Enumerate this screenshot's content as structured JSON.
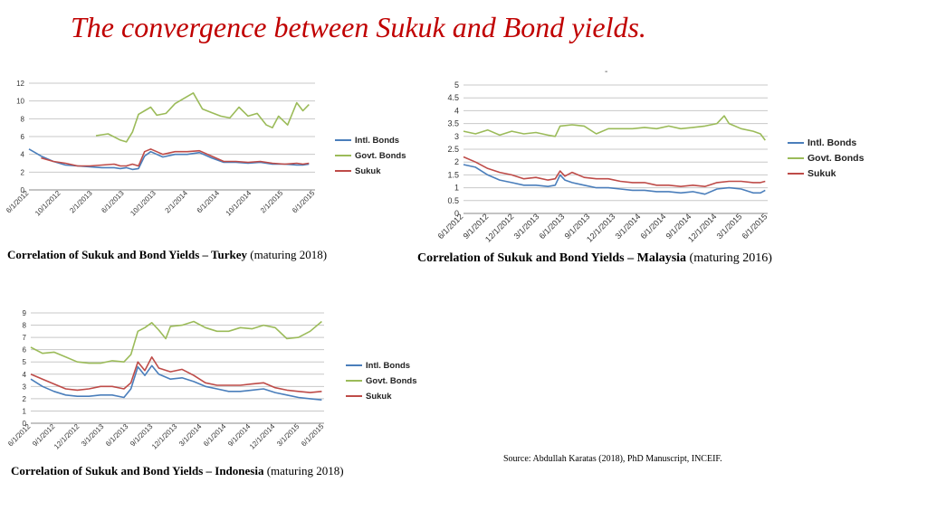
{
  "title": "The convergence between Sukuk and Bond yields.",
  "stray_mark": "-",
  "source": "Source: Abdullah Karatas (2018), PhD Manuscript, INCEIF.",
  "colors": {
    "intl": "#4a7ebb",
    "govt": "#9bbb59",
    "sukuk": "#be4b48",
    "title": "#c00000"
  },
  "captions": [
    {
      "bold": "Correlation of Sukuk and Bond Yields – Turkey",
      "rest": " (maturing 2018)"
    },
    {
      "bold": "Correlation of Sukuk and Bond Yields – Malaysia",
      "rest": " (maturing 2016)"
    },
    {
      "bold": "Correlation of Sukuk and Bond Yields – Indonesia",
      "rest": " (maturing 2018)"
    }
  ],
  "chart_data": [
    {
      "type": "line",
      "country": "Turkey",
      "ylim": [
        0,
        12
      ],
      "yticks": [
        "0",
        "2",
        "4",
        "6",
        "8",
        "10",
        "12"
      ],
      "x_labels": [
        "6/1/2012",
        "10/1/2012",
        "2/1/2013",
        "6/1/2013",
        "10/1/2013",
        "2/1/2014",
        "6/1/2014",
        "10/1/2014",
        "2/1/2015",
        "6/1/2015"
      ],
      "grid": true,
      "legend": "right",
      "series": [
        {
          "name": "Intl. Bonds",
          "key": "intl",
          "x": [
            0,
            0.4,
            0.8,
            1.2,
            1.6,
            2,
            2.4,
            2.8,
            3,
            3.2,
            3.4,
            3.6,
            3.8,
            4,
            4.4,
            4.8,
            5.2,
            5.6,
            6,
            6.4,
            6.8,
            7.2,
            7.6,
            8,
            8.4,
            8.8,
            9,
            9.2
          ],
          "values": [
            4.6,
            3.8,
            3.2,
            2.8,
            2.7,
            2.6,
            2.5,
            2.5,
            2.4,
            2.5,
            2.3,
            2.4,
            3.8,
            4.3,
            3.7,
            4.0,
            4.0,
            4.2,
            3.6,
            3.1,
            3.1,
            3.0,
            3.1,
            2.9,
            2.9,
            2.8,
            2.8,
            2.9
          ]
        },
        {
          "name": "Govt. Bonds",
          "key": "govt",
          "x": [
            2.2,
            2.6,
            3,
            3.2,
            3.4,
            3.6,
            3.8,
            4,
            4.2,
            4.5,
            4.8,
            5.1,
            5.4,
            5.7,
            6,
            6.3,
            6.6,
            6.9,
            7.2,
            7.5,
            7.8,
            8,
            8.2,
            8.5,
            8.8,
            9,
            9.2
          ],
          "values": [
            6.1,
            6.3,
            5.6,
            5.4,
            6.5,
            8.5,
            8.9,
            9.3,
            8.4,
            8.6,
            9.7,
            10.3,
            10.9,
            9.1,
            8.7,
            8.3,
            8.1,
            9.3,
            8.3,
            8.6,
            7.3,
            7.0,
            8.3,
            7.3,
            9.8,
            8.9,
            9.6
          ]
        },
        {
          "name": "Sukuk",
          "key": "sukuk",
          "x": [
            0.4,
            0.8,
            1.2,
            1.6,
            2,
            2.4,
            2.8,
            3,
            3.2,
            3.4,
            3.6,
            3.8,
            4,
            4.4,
            4.8,
            5.2,
            5.6,
            6,
            6.4,
            6.8,
            7.2,
            7.6,
            8,
            8.4,
            8.8,
            9,
            9.2
          ],
          "values": [
            3.6,
            3.2,
            3.0,
            2.7,
            2.7,
            2.8,
            2.9,
            2.7,
            2.7,
            2.9,
            2.7,
            4.3,
            4.6,
            4.0,
            4.3,
            4.3,
            4.4,
            3.8,
            3.2,
            3.2,
            3.1,
            3.2,
            3.0,
            2.9,
            3.0,
            2.9,
            3.0
          ]
        }
      ]
    },
    {
      "type": "line",
      "country": "Malaysia",
      "ylim": [
        0,
        5
      ],
      "yticks": [
        "0",
        "0.5",
        "1",
        "1.5",
        "2",
        "2.5",
        "3",
        "3.5",
        "4",
        "4.5",
        "5"
      ],
      "x_labels": [
        "6/1/2012",
        "9/1/2012",
        "12/1/2012",
        "3/1/2013",
        "6/1/2013",
        "9/1/2013",
        "12/1/2013",
        "3/1/2014",
        "6/1/2014",
        "9/1/2014",
        "12/1/2014",
        "3/1/2015",
        "6/1/2015"
      ],
      "grid": true,
      "legend": "right",
      "series": [
        {
          "name": "Intl. Bonds",
          "key": "intl",
          "x": [
            0,
            0.5,
            1,
            1.5,
            2,
            2.5,
            3,
            3.5,
            3.8,
            4,
            4.2,
            4.5,
            5,
            5.5,
            6,
            6.5,
            7,
            7.5,
            8,
            8.5,
            9,
            9.5,
            10,
            10.5,
            11,
            11.5,
            12,
            12.3,
            12.5
          ],
          "values": [
            1.9,
            1.8,
            1.5,
            1.3,
            1.2,
            1.1,
            1.1,
            1.05,
            1.1,
            1.5,
            1.3,
            1.2,
            1.1,
            1.0,
            1.0,
            0.95,
            0.9,
            0.9,
            0.85,
            0.85,
            0.8,
            0.85,
            0.75,
            0.95,
            1.0,
            0.95,
            0.8,
            0.8,
            0.9
          ]
        },
        {
          "name": "Govt. Bonds",
          "key": "govt",
          "x": [
            0,
            0.5,
            1,
            1.5,
            2,
            2.5,
            3,
            3.5,
            3.8,
            4,
            4.5,
            5,
            5.5,
            6,
            6.5,
            7,
            7.5,
            8,
            8.5,
            9,
            9.5,
            10,
            10.5,
            10.8,
            11,
            11.5,
            12,
            12.3,
            12.5
          ],
          "values": [
            3.2,
            3.1,
            3.25,
            3.05,
            3.2,
            3.1,
            3.15,
            3.05,
            3.0,
            3.4,
            3.45,
            3.4,
            3.1,
            3.3,
            3.3,
            3.3,
            3.35,
            3.3,
            3.4,
            3.3,
            3.35,
            3.4,
            3.5,
            3.8,
            3.5,
            3.3,
            3.2,
            3.1,
            2.85
          ]
        },
        {
          "name": "Sukuk",
          "key": "sukuk",
          "x": [
            0,
            0.5,
            1,
            1.5,
            2,
            2.5,
            3,
            3.5,
            3.8,
            4,
            4.2,
            4.5,
            5,
            5.5,
            6,
            6.5,
            7,
            7.5,
            8,
            8.5,
            9,
            9.5,
            10,
            10.5,
            11,
            11.5,
            12,
            12.3,
            12.5
          ],
          "values": [
            2.2,
            2.0,
            1.75,
            1.6,
            1.5,
            1.35,
            1.4,
            1.3,
            1.35,
            1.65,
            1.45,
            1.6,
            1.4,
            1.35,
            1.35,
            1.25,
            1.2,
            1.2,
            1.1,
            1.1,
            1.05,
            1.1,
            1.05,
            1.2,
            1.25,
            1.25,
            1.2,
            1.2,
            1.25
          ]
        }
      ]
    },
    {
      "type": "line",
      "country": "Indonesia",
      "ylim": [
        0,
        9
      ],
      "yticks": [
        "0",
        "1",
        "2",
        "3",
        "4",
        "5",
        "6",
        "7",
        "8",
        "9"
      ],
      "x_labels": [
        "6/1/2012",
        "9/1/2012",
        "12/1/2012",
        "3/1/2013",
        "6/1/2013",
        "9/1/2013",
        "12/1/2013",
        "3/1/2014",
        "6/1/2014",
        "9/1/2014",
        "12/1/2014",
        "3/1/2015",
        "6/1/2015"
      ],
      "grid": true,
      "legend": "right",
      "series": [
        {
          "name": "Intl. Bonds",
          "key": "intl",
          "x": [
            0,
            0.5,
            1,
            1.5,
            2,
            2.5,
            3,
            3.5,
            4,
            4.3,
            4.6,
            4.9,
            5.2,
            5.5,
            6,
            6.5,
            7,
            7.5,
            8,
            8.5,
            9,
            9.5,
            10,
            10.5,
            11,
            11.5,
            12,
            12.5
          ],
          "values": [
            3.6,
            3.0,
            2.6,
            2.3,
            2.2,
            2.2,
            2.3,
            2.3,
            2.1,
            2.8,
            4.6,
            3.9,
            4.7,
            4.0,
            3.6,
            3.7,
            3.4,
            3.0,
            2.8,
            2.6,
            2.6,
            2.7,
            2.8,
            2.5,
            2.3,
            2.1,
            2.0,
            1.9
          ]
        },
        {
          "name": "Govt. Bonds",
          "key": "govt",
          "x": [
            0,
            0.5,
            1,
            1.5,
            2,
            2.5,
            3,
            3.5,
            4,
            4.3,
            4.6,
            4.9,
            5.2,
            5.5,
            5.8,
            6,
            6.5,
            7,
            7.5,
            8,
            8.5,
            9,
            9.5,
            10,
            10.5,
            11,
            11.5,
            12,
            12.5
          ],
          "values": [
            6.2,
            5.7,
            5.8,
            5.4,
            5.0,
            4.9,
            4.9,
            5.1,
            5.0,
            5.6,
            7.5,
            7.8,
            8.2,
            7.6,
            6.9,
            7.9,
            8.0,
            8.3,
            7.8,
            7.5,
            7.5,
            7.8,
            7.7,
            8.0,
            7.8,
            6.9,
            7.0,
            7.5,
            8.3
          ]
        },
        {
          "name": "Sukuk",
          "key": "sukuk",
          "x": [
            0,
            0.5,
            1,
            1.5,
            2,
            2.5,
            3,
            3.5,
            4,
            4.3,
            4.6,
            4.9,
            5.2,
            5.5,
            6,
            6.5,
            7,
            7.5,
            8,
            8.5,
            9,
            9.5,
            10,
            10.5,
            11,
            11.5,
            12,
            12.5
          ],
          "values": [
            4.0,
            3.6,
            3.2,
            2.8,
            2.7,
            2.8,
            3.0,
            3.0,
            2.8,
            3.3,
            5.0,
            4.3,
            5.4,
            4.5,
            4.2,
            4.4,
            3.9,
            3.3,
            3.1,
            3.1,
            3.1,
            3.2,
            3.3,
            2.9,
            2.7,
            2.6,
            2.5,
            2.6
          ]
        }
      ]
    }
  ]
}
